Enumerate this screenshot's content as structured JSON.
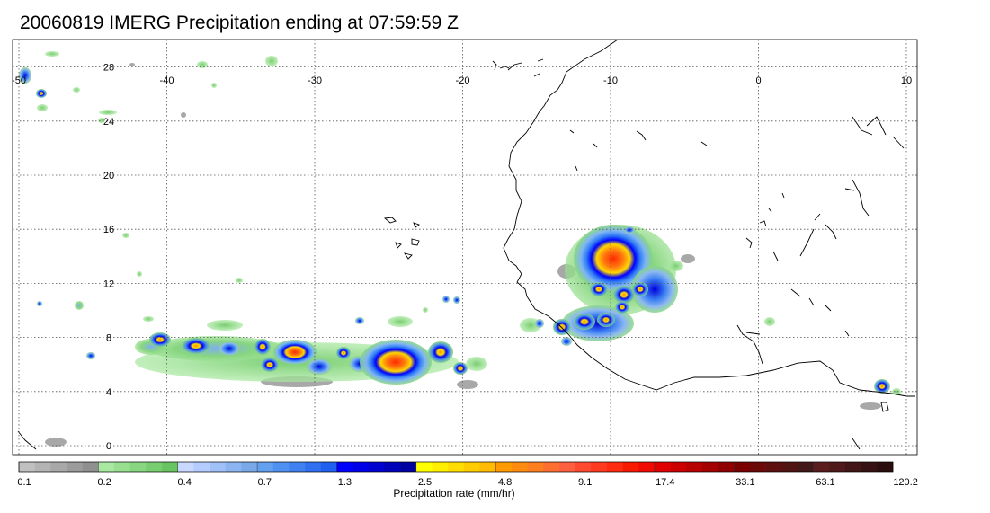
{
  "title": "20060819 IMERG Precipitation ending at 07:59:59 Z",
  "map": {
    "lon_range": [
      -50,
      10
    ],
    "lat_range": [
      -0.5,
      30
    ],
    "lon_ticks": [
      "-50",
      "-40",
      "-30",
      "-20",
      "-10",
      "0",
      "10"
    ],
    "lat_ticks": [
      "28",
      "24",
      "20",
      "16",
      "12",
      "8",
      "4",
      "0"
    ],
    "gridlines": "dotted",
    "coastline_color": "#000000"
  },
  "colorbar": {
    "label": "Precipitation rate (mm/hr)",
    "tick_labels": [
      "0.1",
      "0.2",
      "0.4",
      "0.7",
      "1.3",
      "2.5",
      "4.8",
      "9.1",
      "17.4",
      "33.1",
      "63.1",
      "120.2"
    ],
    "group_colors": [
      [
        "#c0c0c0",
        "#b4b4b4",
        "#a8a8a8",
        "#9c9c9c",
        "#909090"
      ],
      [
        "#a8e8a0",
        "#98df90",
        "#88d680",
        "#78cd70",
        "#68c460"
      ],
      [
        "#c8d8ff",
        "#b4ccff",
        "#a0c0f8",
        "#8cb4f0",
        "#78a8e8"
      ],
      [
        "#64a0f0",
        "#5090f0",
        "#4080f0",
        "#3070f0",
        "#2060f0"
      ],
      [
        "#0000ff",
        "#0000e8",
        "#0000d0",
        "#0000b8",
        "#0000a0"
      ],
      [
        "#ffff00",
        "#ffee00",
        "#ffdd00",
        "#ffcc00",
        "#ffbb00"
      ],
      [
        "#ff9a00",
        "#ff8c10",
        "#ff7e20",
        "#ff7030",
        "#ff6040"
      ],
      [
        "#ff4a30",
        "#ff3a20",
        "#ff2a10",
        "#f81a00",
        "#f00a00"
      ],
      [
        "#e00000",
        "#cc0000",
        "#b80000",
        "#a40000",
        "#900000"
      ],
      [
        "#7a0000",
        "#6c0a0a",
        "#5e1010",
        "#501414",
        "#421818"
      ],
      [
        "#5a1e1e",
        "#4e1a1a",
        "#421616",
        "#361212",
        "#2a0e0e"
      ]
    ]
  }
}
